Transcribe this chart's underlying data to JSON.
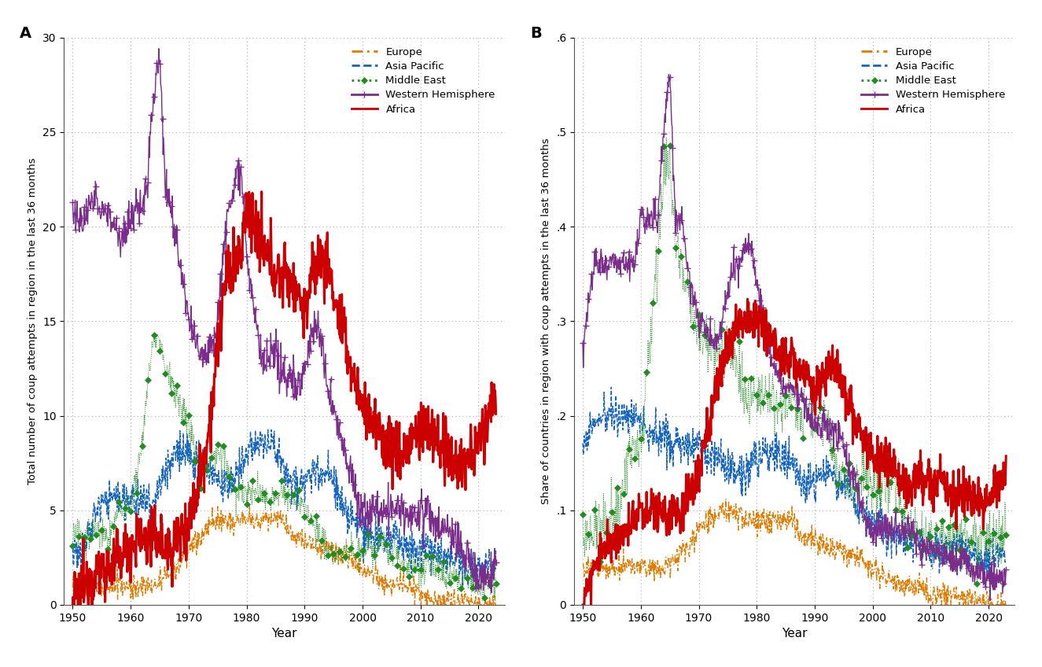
{
  "ylabel_A": "Total number of coup attempts in region in the last 36 months",
  "ylabel_B": "Share of countries in region with coup attempts in the last 36 months",
  "xlabel": "Year",
  "ylim_A": [
    0,
    30
  ],
  "ylim_B": [
    0,
    0.6
  ],
  "yticks_A": [
    0,
    5,
    10,
    15,
    20,
    25,
    30
  ],
  "yticks_B": [
    0.0,
    0.1,
    0.2,
    0.3,
    0.4,
    0.5,
    0.6
  ],
  "xlim": [
    1948.5,
    2024.5
  ],
  "xticks": [
    1950,
    1960,
    1970,
    1980,
    1990,
    2000,
    2010,
    2020
  ],
  "colors": {
    "africa": "#cc0000",
    "western_hem": "#7b2d8b",
    "middle_east": "#228b22",
    "asia_pacific": "#1565c0",
    "europe": "#e07b00"
  }
}
